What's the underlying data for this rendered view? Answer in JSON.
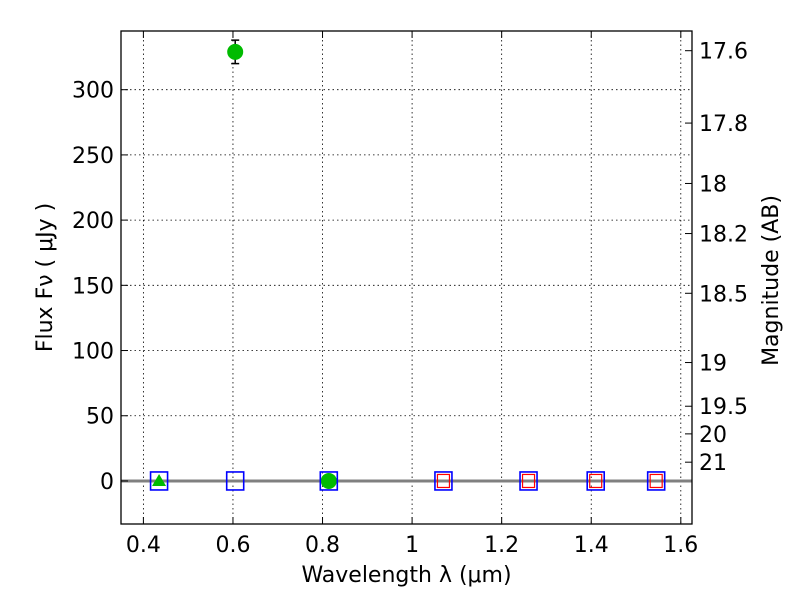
{
  "chart_data": {
    "type": "scatter",
    "title": "",
    "xlabel": "Wavelength  λ (μm)",
    "ylabel": "Flux  Fν  ( μJy )",
    "y2label": "Magnitude (AB)",
    "xlim": [
      0.35,
      1.625
    ],
    "ylim": [
      -33,
      345
    ],
    "grid": true,
    "x_ticks": [
      0.4,
      0.6,
      0.8,
      1.0,
      1.2,
      1.4,
      1.6
    ],
    "x_tick_labels": [
      "0.4",
      "0.6",
      "0.8",
      "1",
      "1.2",
      "1.4",
      "1.6"
    ],
    "y_ticks": [
      0,
      50,
      100,
      150,
      200,
      250,
      300
    ],
    "y_tick_labels": [
      "0",
      "50",
      "100",
      "150",
      "200",
      "250",
      "300"
    ],
    "y2_ticks": [
      {
        "label": "17.6",
        "flux": 329.9
      },
      {
        "label": "17.8",
        "flux": 274.4
      },
      {
        "label": "18",
        "flux": 228.1
      },
      {
        "label": "18.2",
        "flux": 189.7
      },
      {
        "label": "18.5",
        "flux": 143.9
      },
      {
        "label": "19",
        "flux": 90.8
      },
      {
        "label": "19.5",
        "flux": 57.3
      },
      {
        "label": "20",
        "flux": 36.1
      },
      {
        "label": "21",
        "flux": 14.4
      }
    ],
    "zero_line": {
      "y": 0,
      "color": "#808080"
    },
    "series": [
      {
        "marker": "circle",
        "color": "#00bb00",
        "points": [
          {
            "x": 0.605,
            "y": 329,
            "yerr": 9
          },
          {
            "x": 0.814,
            "y": 0,
            "yerr": 0
          }
        ]
      },
      {
        "marker": "triangle",
        "color": "#00bb00",
        "points": [
          {
            "x": 0.435,
            "y": 0,
            "yerr": 0
          }
        ]
      },
      {
        "marker": "square-open",
        "color": "#0000ff",
        "points": [
          {
            "x": 0.435,
            "y": 0
          },
          {
            "x": 0.605,
            "y": 0
          },
          {
            "x": 0.814,
            "y": 0
          },
          {
            "x": 1.07,
            "y": 0
          },
          {
            "x": 1.26,
            "y": 0
          },
          {
            "x": 1.41,
            "y": 0
          },
          {
            "x": 1.545,
            "y": 0
          }
        ]
      },
      {
        "marker": "square-open-small",
        "color": "#ff0000",
        "points": [
          {
            "x": 1.07,
            "y": 0
          },
          {
            "x": 1.26,
            "y": 0
          },
          {
            "x": 1.41,
            "y": 0
          },
          {
            "x": 1.545,
            "y": 0
          }
        ]
      }
    ]
  }
}
